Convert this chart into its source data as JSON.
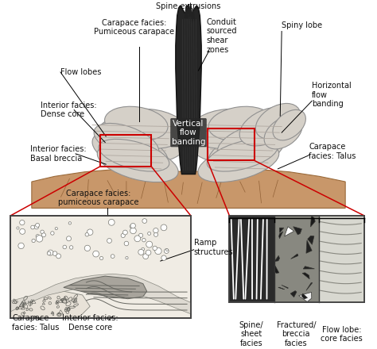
{
  "figure_size": [
    4.74,
    4.4
  ],
  "dpi": 100,
  "bg_color": "#ffffff",
  "labels": {
    "spine_extrusions": "Spine extrusions",
    "carapace_pumiceous": "Carapace facies:\nPumiceous carapace",
    "flow_lobes": "Flow lobes",
    "interior_dense": "Interior facies:\nDense core",
    "interior_basal": "Interior facies:\nBasal breccia",
    "conduit_shear": "Conduit\nsourced\nshear\nzones",
    "spiny_lobe": "Spiny lobe",
    "horizontal_flow": "Horizontal\nflow\nbanding",
    "carapace_talus_r": "Carapace\nfacies: Talus",
    "vertical_flow": "Vertical\nflow\nbanding",
    "carapace_pumiceous2": "Carapace facies:\npumiceous carapace",
    "ramp_structures": "Ramp\nstructures",
    "carapace_talus2": "Carapace\nfacies: Talus",
    "interior_dense2": "Interior facies:\nDense core",
    "spine_sheet": "Spine/\nsheet\nfacies",
    "fractured_breccia": "Fractured/\nbreccia\nfacies",
    "flow_lobe_core": "Flow lobe:\ncore facies"
  }
}
